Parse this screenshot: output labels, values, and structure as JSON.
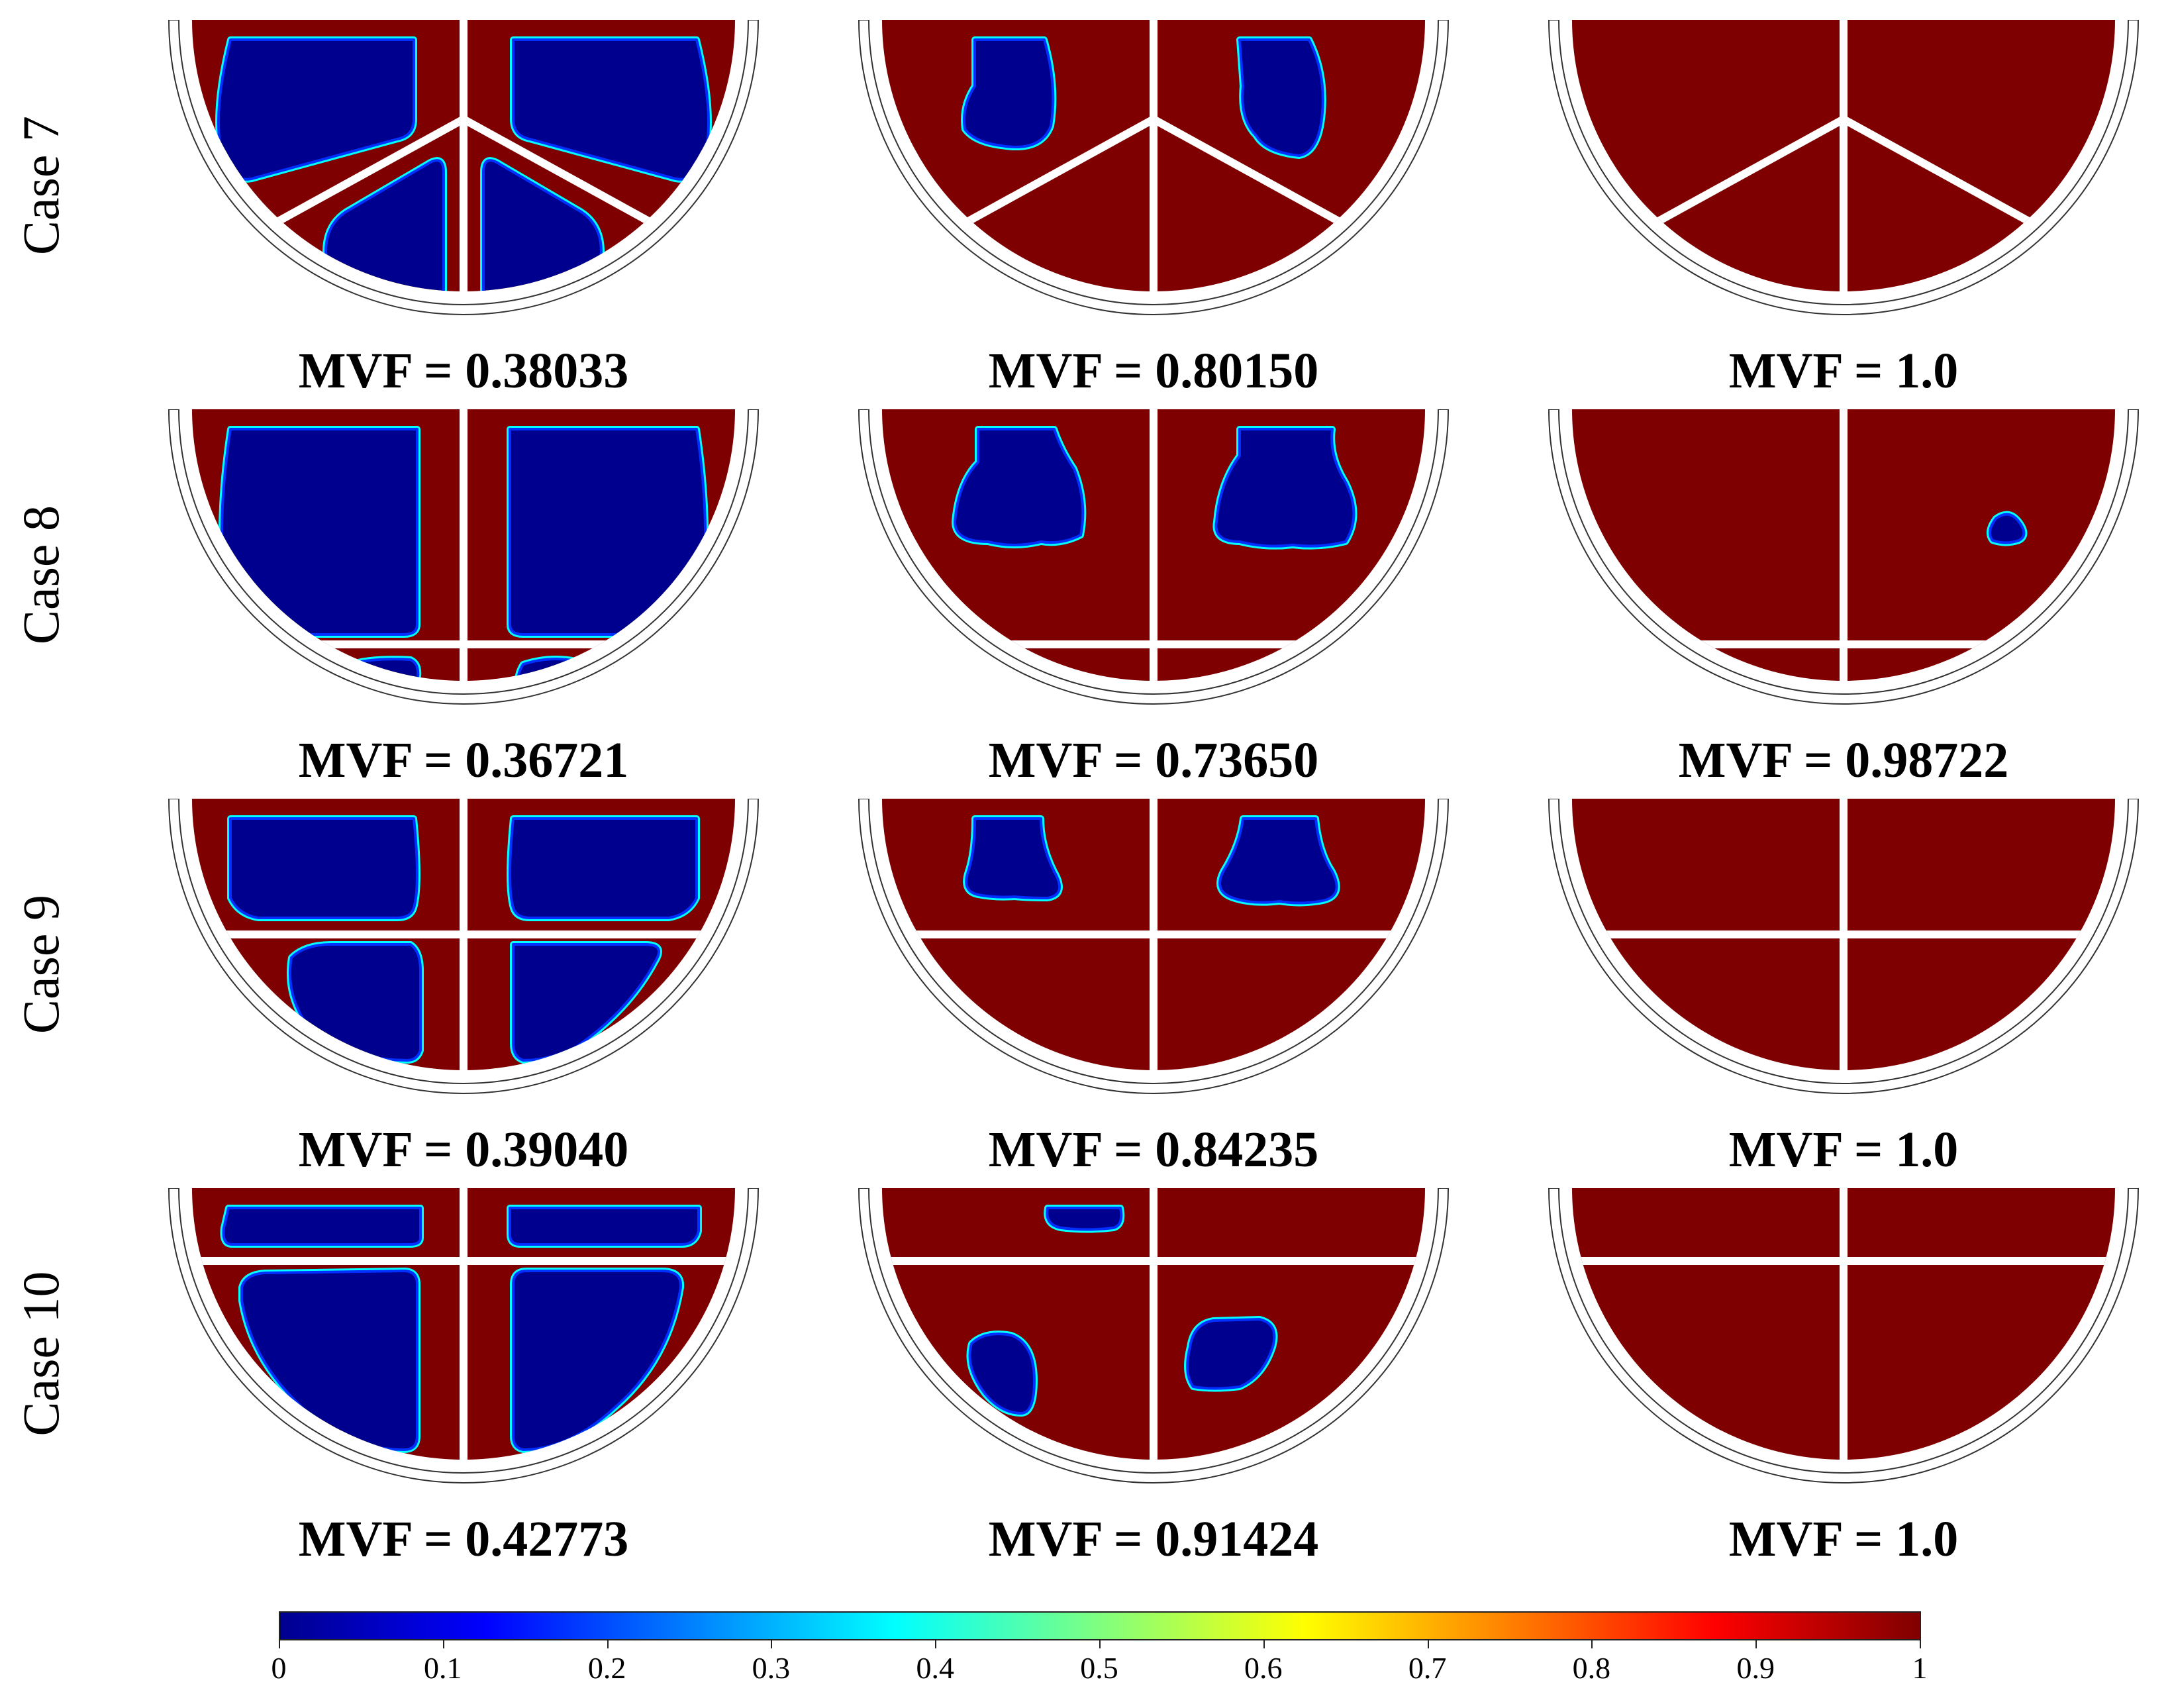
{
  "colors": {
    "liquid": "#7f0000",
    "solid": "#00008f",
    "gradient_stops": [
      "#00008f",
      "#0000ff",
      "#00ffff",
      "#ffff00",
      "#ff0000",
      "#800000"
    ]
  },
  "rows": [
    {
      "label": "Case 7",
      "fin_type": "y-shaped",
      "mvf": [
        "MVF = 0.38033",
        "MVF = 0.80150",
        "MVF = 1.0"
      ]
    },
    {
      "label": "Case 8",
      "fin_type": "cross-low",
      "mvf": [
        "MVF = 0.36721",
        "MVF = 0.73650",
        "MVF = 0.98722"
      ]
    },
    {
      "label": "Case 9",
      "fin_type": "cross-mid",
      "mvf": [
        "MVF = 0.39040",
        "MVF = 0.84235",
        "MVF = 1.0"
      ]
    },
    {
      "label": "Case 10",
      "fin_type": "cross-high",
      "mvf": [
        "MVF = 0.42773",
        "MVF = 0.91424",
        "MVF = 1.0"
      ]
    }
  ],
  "colorbar": {
    "ticks": [
      "0",
      "0.1",
      "0.2",
      "0.3",
      "0.4",
      "0.5",
      "0.6",
      "0.7",
      "0.8",
      "0.9",
      "1"
    ],
    "min": 0,
    "max": 1
  }
}
